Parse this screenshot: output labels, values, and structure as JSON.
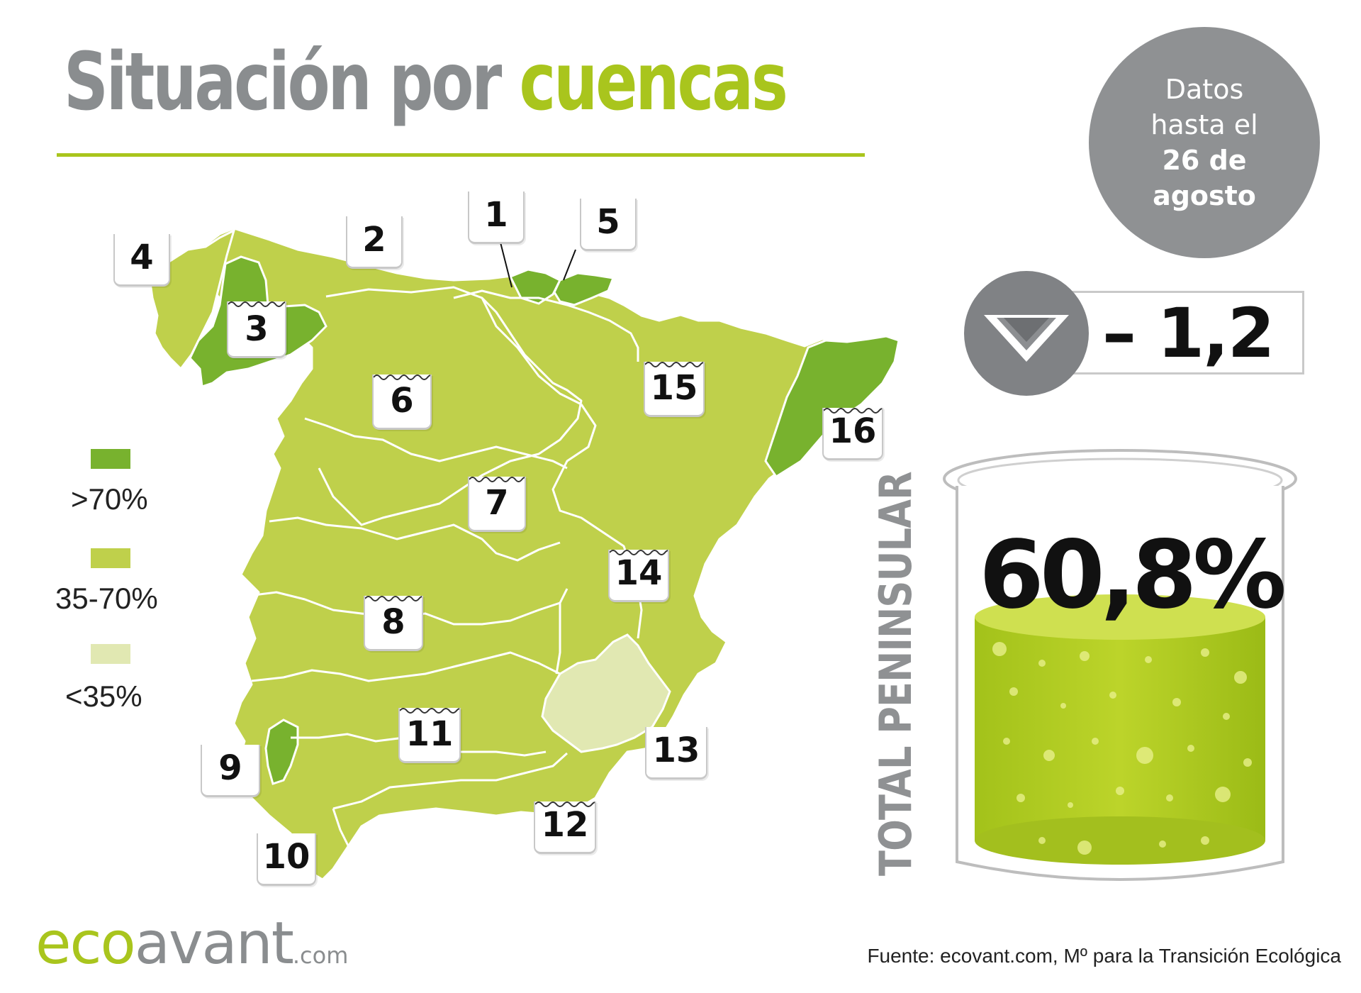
{
  "title": {
    "part1": "Situación por",
    "part2": "cuencas"
  },
  "date_badge": {
    "line1": "Datos",
    "line2": "hasta el",
    "line3": "26 de",
    "line4": "agosto"
  },
  "weekly_change": {
    "value": "– 1,2",
    "icon": "down-triangle-icon"
  },
  "total": {
    "label": "TOTAL PENINSULAR",
    "value": "60,8%",
    "fill_level_percent": 60.8
  },
  "legend": [
    {
      "label": ">70%",
      "color": "#78b22e"
    },
    {
      "label": "35-70%",
      "color": "#bfd04b"
    },
    {
      "label": "<35%",
      "color": "#e1e8b2"
    }
  ],
  "basins": [
    {
      "num": "1"
    },
    {
      "num": "2"
    },
    {
      "num": "3"
    },
    {
      "num": "4"
    },
    {
      "num": "5"
    },
    {
      "num": "6"
    },
    {
      "num": "7"
    },
    {
      "num": "8"
    },
    {
      "num": "9"
    },
    {
      "num": "10"
    },
    {
      "num": "11"
    },
    {
      "num": "12"
    },
    {
      "num": "13"
    },
    {
      "num": "14"
    },
    {
      "num": "15"
    },
    {
      "num": "16"
    }
  ],
  "logo": {
    "eco": "eco",
    "avant": "avant",
    "com": ".com"
  },
  "source": "Fuente: ecovant.com, Mº para la Transición Ecológica"
}
